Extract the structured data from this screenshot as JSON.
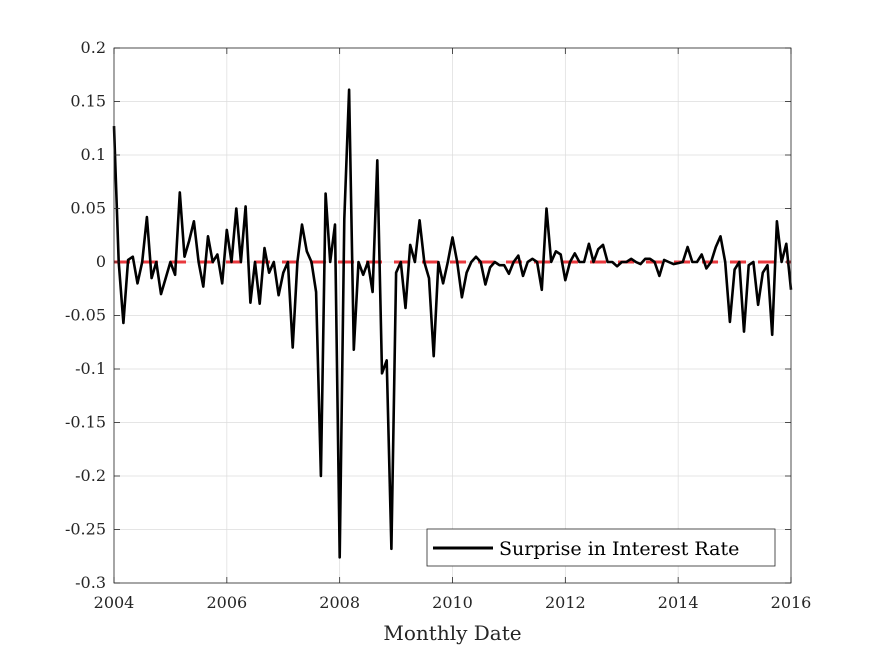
{
  "chart_data": {
    "type": "line",
    "title": "",
    "xlabel": "Monthly Date",
    "ylabel": "",
    "xlim": [
      2004,
      2016
    ],
    "ylim": [
      -0.3,
      0.2
    ],
    "x_ticks": [
      2004,
      2006,
      2008,
      2010,
      2012,
      2014,
      2016
    ],
    "x_tick_labels": [
      "2004",
      "2006",
      "2008",
      "2010",
      "2012",
      "2014",
      "2016"
    ],
    "y_ticks": [
      0.2,
      0.15,
      0.1,
      0.05,
      0,
      -0.05,
      -0.1,
      -0.15,
      -0.2,
      -0.25,
      -0.3
    ],
    "y_tick_labels": [
      "0.2",
      "0.15",
      "0.1",
      "0.05",
      "0",
      "-0.05",
      "-0.1",
      "-0.15",
      "-0.2",
      "-0.25",
      "-0.3"
    ],
    "grid": true,
    "legend": {
      "location": "bottom-right",
      "entries": [
        "Surprise in Interest Rate"
      ]
    },
    "reference_line": {
      "y": 0,
      "style": "dashed",
      "color": "#e8383d"
    },
    "series": [
      {
        "name": "Surprise in Interest Rate",
        "color": "#000000",
        "x": [
          2004.0,
          2004.083,
          2004.167,
          2004.25,
          2004.333,
          2004.417,
          2004.5,
          2004.583,
          2004.667,
          2004.75,
          2004.833,
          2004.917,
          2005.0,
          2005.083,
          2005.167,
          2005.25,
          2005.333,
          2005.417,
          2005.5,
          2005.583,
          2005.667,
          2005.75,
          2005.833,
          2005.917,
          2006.0,
          2006.083,
          2006.167,
          2006.25,
          2006.333,
          2006.417,
          2006.5,
          2006.583,
          2006.667,
          2006.75,
          2006.833,
          2006.917,
          2007.0,
          2007.083,
          2007.167,
          2007.25,
          2007.333,
          2007.417,
          2007.5,
          2007.583,
          2007.667,
          2007.75,
          2007.833,
          2007.917,
          2008.0,
          2008.083,
          2008.167,
          2008.25,
          2008.333,
          2008.417,
          2008.5,
          2008.583,
          2008.667,
          2008.75,
          2008.833,
          2008.917,
          2009.0,
          2009.083,
          2009.167,
          2009.25,
          2009.333,
          2009.417,
          2009.5,
          2009.583,
          2009.667,
          2009.75,
          2009.833,
          2009.917,
          2010.0,
          2010.083,
          2010.167,
          2010.25,
          2010.333,
          2010.417,
          2010.5,
          2010.583,
          2010.667,
          2010.75,
          2010.833,
          2010.917,
          2011.0,
          2011.083,
          2011.167,
          2011.25,
          2011.333,
          2011.417,
          2011.5,
          2011.583,
          2011.667,
          2011.75,
          2011.833,
          2011.917,
          2012.0,
          2012.083,
          2012.167,
          2012.25,
          2012.333,
          2012.417,
          2012.5,
          2012.583,
          2012.667,
          2012.75,
          2012.833,
          2012.917,
          2013.0,
          2013.083,
          2013.167,
          2013.25,
          2013.333,
          2013.417,
          2013.5,
          2013.583,
          2013.667,
          2013.75,
          2013.833,
          2013.917,
          2014.0,
          2014.083,
          2014.167,
          2014.25,
          2014.333,
          2014.417,
          2014.5,
          2014.583,
          2014.667,
          2014.75,
          2014.833,
          2014.917,
          2015.0,
          2015.083,
          2015.167,
          2015.25,
          2015.333,
          2015.417,
          2015.5,
          2015.583,
          2015.667,
          2015.75,
          2015.833,
          2015.917,
          2016.0
        ],
        "y": [
          0.127,
          0.0,
          -0.057,
          0.002,
          0.005,
          -0.02,
          0.0,
          0.042,
          -0.015,
          0.0,
          -0.03,
          -0.015,
          0.0,
          -0.012,
          0.065,
          0.005,
          0.02,
          0.038,
          0.0,
          -0.023,
          0.024,
          0.0,
          0.007,
          -0.02,
          0.03,
          0.0,
          0.05,
          0.0,
          0.052,
          -0.038,
          0.0,
          -0.039,
          0.013,
          -0.01,
          0.0,
          -0.031,
          -0.01,
          0.0,
          -0.08,
          0.0,
          0.035,
          0.01,
          0.0,
          -0.028,
          -0.2,
          0.064,
          0.0,
          0.035,
          -0.276,
          0.04,
          0.161,
          -0.082,
          0.0,
          -0.012,
          0.0,
          -0.028,
          0.095,
          -0.104,
          -0.092,
          -0.268,
          -0.01,
          0.0,
          -0.043,
          0.016,
          0.0,
          0.039,
          0.0,
          -0.015,
          -0.088,
          0.0,
          -0.02,
          0.0,
          0.023,
          0.0,
          -0.033,
          -0.01,
          0.0,
          0.005,
          0.0,
          -0.021,
          -0.005,
          0.0,
          -0.003,
          -0.003,
          -0.011,
          0.0,
          0.006,
          -0.013,
          0.0,
          0.003,
          0.0,
          -0.026,
          0.05,
          0.0,
          0.01,
          0.007,
          -0.017,
          0.0,
          0.008,
          0.0,
          0.0,
          0.017,
          0.0,
          0.012,
          0.016,
          0.0,
          0.0,
          -0.004,
          0.0,
          0.0,
          0.003,
          0.0,
          -0.002,
          0.003,
          0.003,
          0.0,
          -0.013,
          0.002,
          0.0,
          -0.002,
          -0.001,
          0.0,
          0.014,
          0.0,
          0.0,
          0.007,
          -0.006,
          0.0,
          0.014,
          0.024,
          0.0,
          -0.056,
          -0.007,
          0.0,
          -0.065,
          -0.003,
          0.0,
          -0.04,
          -0.01,
          -0.003,
          -0.068,
          0.038,
          0.0,
          0.017,
          -0.026
        ]
      }
    ]
  }
}
